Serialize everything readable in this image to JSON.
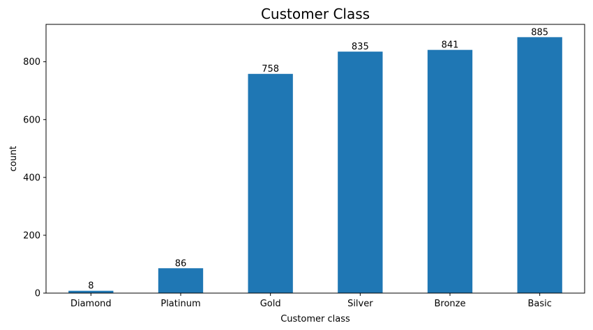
{
  "chart_data": {
    "type": "bar",
    "title": "Customer Class",
    "xlabel": "Customer class",
    "ylabel": "count",
    "categories": [
      "Diamond",
      "Platinum",
      "Gold",
      "Silver",
      "Bronze",
      "Basic"
    ],
    "values": [
      8,
      86,
      758,
      835,
      841,
      885
    ],
    "data_labels": [
      "8",
      "86",
      "758",
      "835",
      "841",
      "885"
    ],
    "ylim": [
      0,
      929.25
    ],
    "yticks": [
      0,
      200,
      400,
      600,
      800
    ],
    "ytick_labels": [
      "0",
      "200",
      "400",
      "600",
      "800"
    ],
    "grid": false,
    "legend": "none",
    "bar_color": "#1f77b4"
  }
}
